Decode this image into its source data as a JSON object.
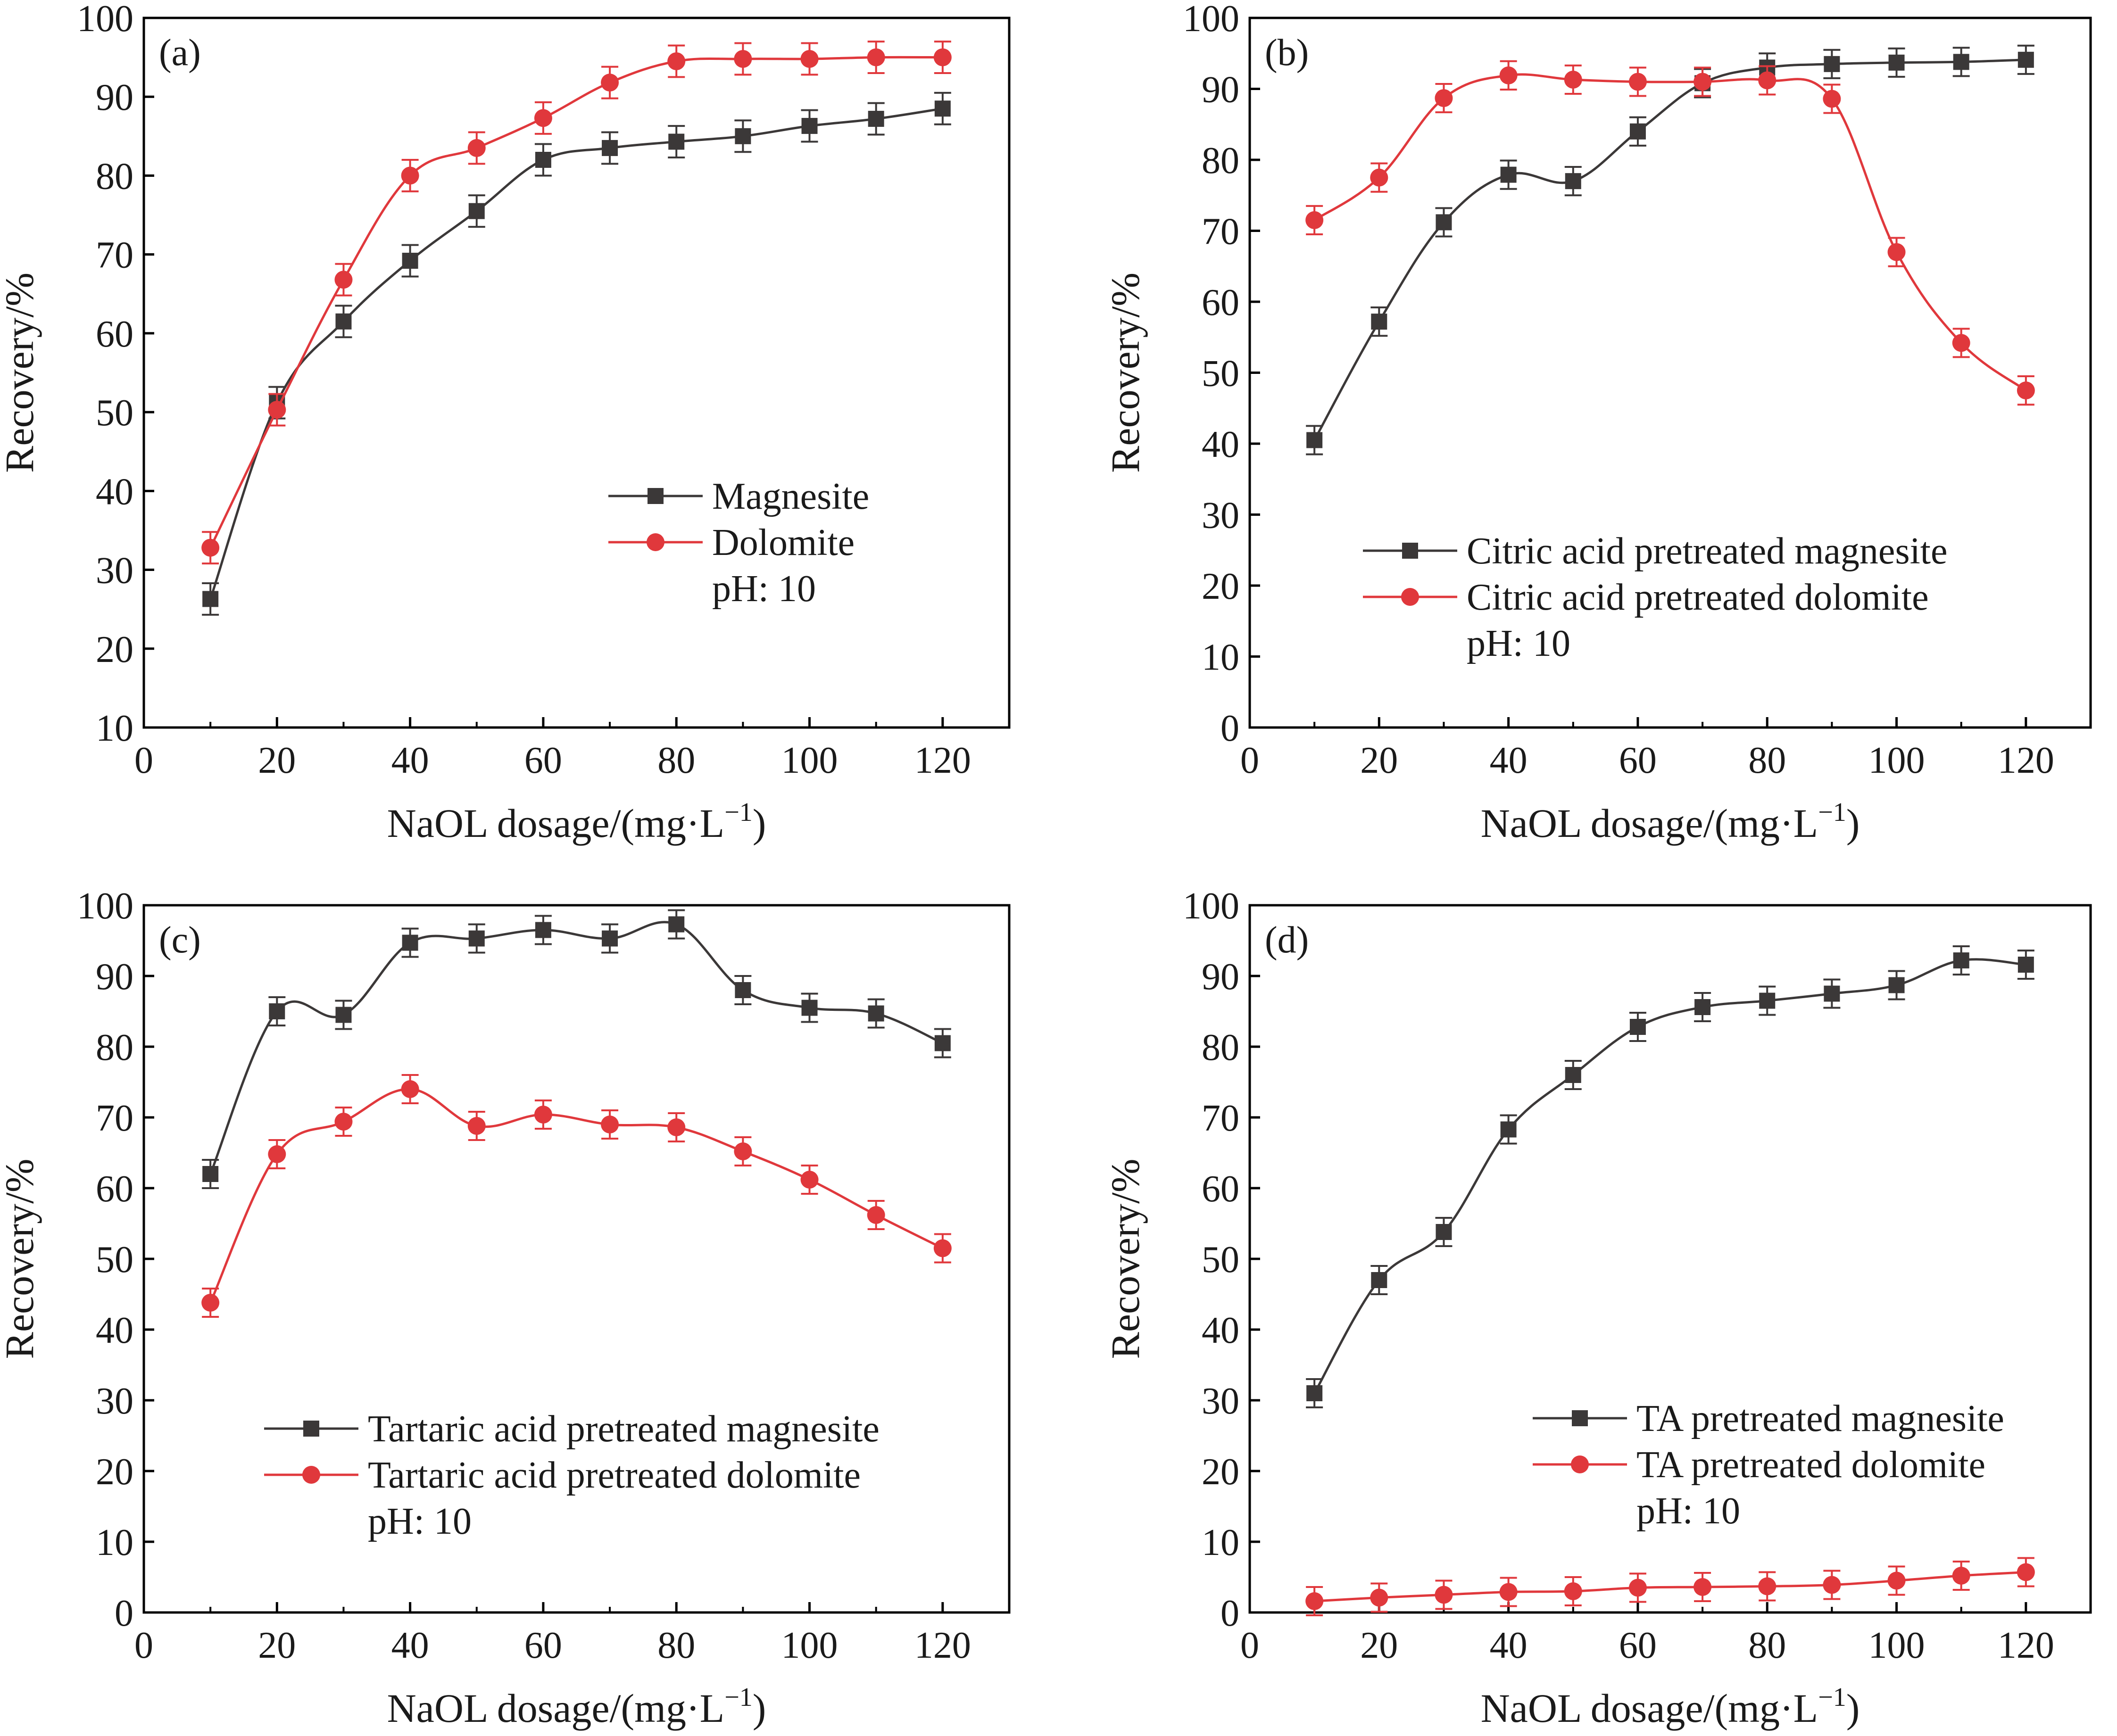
{
  "colors": {
    "series_dark": "#3b3838",
    "series_red": "#e0383c",
    "axis": "#000000"
  },
  "chart_data": [
    {
      "type": "line",
      "panel_label": "(a)",
      "title": "",
      "xlabel": "NaOL dosage/(mg·L",
      "xlabel_sup": "−1",
      "xlabel_close": ")",
      "ylabel": "Recovery/%",
      "xlim": [
        0,
        130
      ],
      "ylim": [
        10,
        100
      ],
      "xticks": [
        0,
        20,
        40,
        60,
        80,
        100,
        120
      ],
      "yticks": [
        10,
        20,
        30,
        40,
        50,
        60,
        70,
        80,
        90,
        100
      ],
      "legend_location": "center-right",
      "note": "pH: 10",
      "x": [
        10,
        20,
        30,
        40,
        50,
        60,
        70,
        80,
        90,
        100,
        110,
        120
      ],
      "series": [
        {
          "name": "Magnesite",
          "marker": "square",
          "color": "#3b3838",
          "error": 2,
          "values": [
            26.3,
            51.2,
            61.5,
            69.2,
            75.5,
            82.0,
            83.5,
            84.3,
            85.0,
            86.3,
            87.2,
            88.5
          ]
        },
        {
          "name": "Dolomite",
          "marker": "circle",
          "color": "#e0383c",
          "error": 2,
          "values": [
            32.8,
            50.3,
            66.8,
            80.0,
            83.5,
            87.3,
            91.8,
            94.5,
            94.8,
            94.8,
            95.0,
            95.0
          ]
        }
      ]
    },
    {
      "type": "line",
      "panel_label": "(b)",
      "title": "",
      "xlabel": "NaOL dosage/(mg·L",
      "xlabel_sup": "−1",
      "xlabel_close": ")",
      "ylabel": "Recovery/%",
      "xlim": [
        0,
        130
      ],
      "ylim": [
        0,
        100
      ],
      "xticks": [
        0,
        20,
        40,
        60,
        80,
        100,
        120
      ],
      "yticks": [
        0,
        10,
        20,
        30,
        40,
        50,
        60,
        70,
        80,
        90,
        100
      ],
      "legend_location": "lower-right",
      "note": "pH: 10",
      "x": [
        10,
        20,
        30,
        40,
        50,
        60,
        70,
        80,
        90,
        100,
        110,
        120
      ],
      "series": [
        {
          "name": "Citric acid pretreated magnesite",
          "marker": "square",
          "color": "#3b3838",
          "error": 2,
          "values": [
            40.5,
            57.2,
            71.2,
            77.9,
            77.0,
            84.0,
            90.8,
            93.0,
            93.5,
            93.7,
            93.8,
            94.1
          ]
        },
        {
          "name": "Citric acid pretreated dolomite",
          "marker": "circle",
          "color": "#e0383c",
          "error": 2,
          "values": [
            71.5,
            77.5,
            88.7,
            91.9,
            91.3,
            91.0,
            91.0,
            91.2,
            88.6,
            67.0,
            54.2,
            47.5
          ]
        }
      ]
    },
    {
      "type": "line",
      "panel_label": "(c)",
      "title": "",
      "xlabel": "NaOL dosage/(mg·L",
      "xlabel_sup": "−1",
      "xlabel_close": ")",
      "ylabel": "Recovery/%",
      "xlim": [
        0,
        130
      ],
      "ylim": [
        0,
        100
      ],
      "xticks": [
        0,
        20,
        40,
        60,
        80,
        100,
        120
      ],
      "yticks": [
        0,
        10,
        20,
        30,
        40,
        50,
        60,
        70,
        80,
        90,
        100
      ],
      "legend_location": "lower-center",
      "note": "pH: 10",
      "x": [
        10,
        20,
        30,
        40,
        50,
        60,
        70,
        80,
        90,
        100,
        110,
        120
      ],
      "series": [
        {
          "name": "Tartaric acid pretreated magnesite",
          "marker": "square",
          "color": "#3b3838",
          "error": 2,
          "values": [
            62.0,
            85.0,
            84.5,
            94.7,
            95.3,
            96.5,
            95.3,
            97.3,
            88.0,
            85.5,
            84.7,
            80.5
          ]
        },
        {
          "name": "Tartaric acid pretreated dolomite",
          "marker": "circle",
          "color": "#e0383c",
          "error": 2,
          "values": [
            43.8,
            64.8,
            69.4,
            74.0,
            68.8,
            70.4,
            69.0,
            68.6,
            65.2,
            61.2,
            56.2,
            51.5
          ]
        }
      ]
    },
    {
      "type": "line",
      "panel_label": "(d)",
      "title": "",
      "xlabel": "NaOL dosage/(mg·L",
      "xlabel_sup": "−1",
      "xlabel_close": ")",
      "ylabel": "Recovery/%",
      "xlim": [
        0,
        130
      ],
      "ylim": [
        0,
        100
      ],
      "xticks": [
        0,
        20,
        40,
        60,
        80,
        100,
        120
      ],
      "yticks": [
        0,
        10,
        20,
        30,
        40,
        50,
        60,
        70,
        80,
        90,
        100
      ],
      "legend_location": "lower-right",
      "note": "pH: 10",
      "x": [
        10,
        20,
        30,
        40,
        50,
        60,
        70,
        80,
        90,
        100,
        110,
        120
      ],
      "series": [
        {
          "name": "TA pretreated magnesite",
          "marker": "square",
          "color": "#3b3838",
          "error": 2,
          "values": [
            31.0,
            47.0,
            53.8,
            68.3,
            76.0,
            82.8,
            85.6,
            86.5,
            87.5,
            88.7,
            92.2,
            91.6
          ]
        },
        {
          "name": "TA pretreated dolomite",
          "marker": "circle",
          "color": "#e0383c",
          "error": 2,
          "values": [
            1.6,
            2.1,
            2.5,
            2.9,
            3.0,
            3.5,
            3.6,
            3.7,
            3.9,
            4.5,
            5.2,
            5.7
          ]
        }
      ]
    }
  ]
}
